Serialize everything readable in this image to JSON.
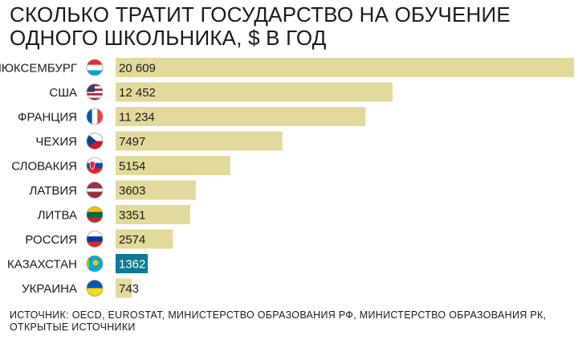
{
  "title": "СКОЛЬКО ТРАТИТ ГОСУДАРСТВО НА ОБУЧЕНИЕ ОДНОГО ШКОЛЬНИКА, $ В ГОД",
  "source": "ИСТОЧНИК: OECD, EUROSTAT, МИНИСТЕРСТВО ОБРАЗОВАНИЯ РФ, МИНИСТЕРСТВО ОБРАЗОВАНИЯ РК, ОТКРЫТЫЕ ИСТОЧНИКИ",
  "colors": {
    "bar": "#e2da9b",
    "highlight": "#0e7a90",
    "text": "#1a1a1a",
    "highlight_text": "#ffffff"
  },
  "chart_data": {
    "type": "bar",
    "orientation": "horizontal",
    "title": "СКОЛЬКО ТРАТИТ ГОСУДАРСТВО НА ОБУЧЕНИЕ ОДНОГО ШКОЛЬНИКА, $ В ГОД",
    "categories": [
      "ЛЮКСЕМБУРГ",
      "США",
      "ФРАНЦИЯ",
      "ЧЕХИЯ",
      "СЛОВАКИЯ",
      "ЛАТВИЯ",
      "ЛИТВА",
      "РОССИЯ",
      "КАЗАХСТАН",
      "УКРАИНА"
    ],
    "values": [
      20609,
      12452,
      11234,
      7497,
      5154,
      3603,
      3351,
      2574,
      1362,
      743
    ],
    "value_labels": [
      "20 609",
      "12 452",
      "11 234",
      "7497",
      "5154",
      "3603",
      "3351",
      "2574",
      "1362",
      "743"
    ],
    "highlight": "КАЗАХСТАН",
    "flags": [
      "luxembourg-flag-icon",
      "usa-flag-icon",
      "france-flag-icon",
      "czechia-flag-icon",
      "slovakia-flag-icon",
      "latvia-flag-icon",
      "lithuania-flag-icon",
      "russia-flag-icon",
      "kazakhstan-flag-icon",
      "ukraine-flag-icon"
    ],
    "xlim": [
      0,
      20609
    ],
    "grid": false,
    "legend": "none"
  }
}
